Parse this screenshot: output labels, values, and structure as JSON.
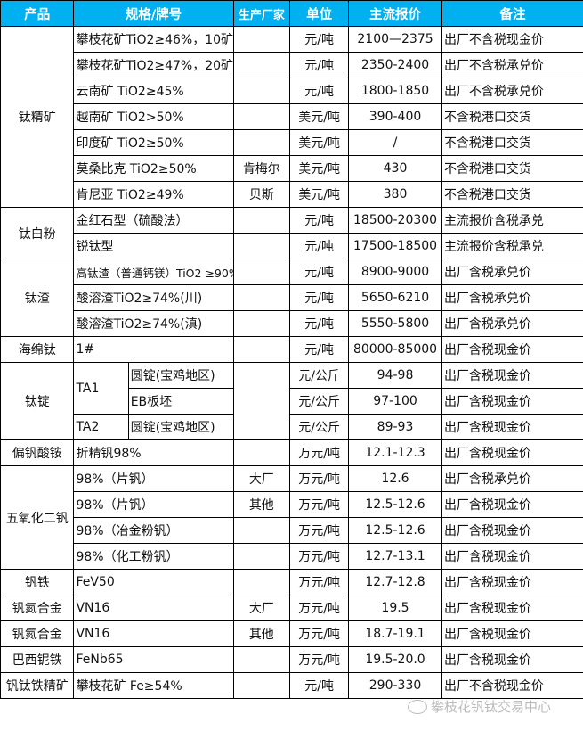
{
  "header": {
    "product": "产品",
    "spec": "规格/牌号",
    "maker": "生产厂家",
    "unit": "单位",
    "price": "主流报价",
    "note": "备注"
  },
  "colors": {
    "header_bg": "#00B0F0",
    "header_text": "#FFFFFF",
    "watermark": "#BBBBBB"
  },
  "groups": [
    {
      "product": "钛精矿",
      "rows": [
        {
          "spec": "攀枝花矿TiO2≥46%，10矿",
          "maker": "",
          "unit": "元/吨",
          "price": "2100—2375",
          "note": "出厂不含税现金价"
        },
        {
          "spec": "攀枝花矿TiO2≥47%，20矿",
          "maker": "",
          "unit": "元/吨",
          "price": "2350-2400",
          "note": "出厂不含税承兑价"
        },
        {
          "spec": "云南矿 TiO2≥45%",
          "maker": "",
          "unit": "元/吨",
          "price": "1800-1850",
          "note": "出厂不含税承兑价"
        },
        {
          "spec": "越南矿 TiO2>50%",
          "maker": "",
          "unit": "美元/吨",
          "price": "390-400",
          "note": "不含税港口交货"
        },
        {
          "spec": "印度矿 TiO2≥50%",
          "maker": "",
          "unit": "美元/吨",
          "price": "/",
          "note": "不含税港口交货"
        },
        {
          "spec": "莫桑比克 TiO2≥50%",
          "maker": "肯梅尔",
          "unit": "美元/吨",
          "price": "430",
          "note": "不含税港口交货"
        },
        {
          "spec": "肯尼亚 TiO2≥49%",
          "maker": "贝斯",
          "unit": "美元/吨",
          "price": "380",
          "note": "不含税港口交货"
        }
      ]
    },
    {
      "product": "钛白粉",
      "rows": [
        {
          "spec": "金红石型（硫酸法）",
          "maker": "",
          "unit": "元/吨",
          "price": "18500-20300",
          "note": "主流报价含税承兑"
        },
        {
          "spec": "锐钛型",
          "maker": "",
          "unit": "元/吨",
          "price": "17500-18500",
          "note": "主流报价含税承兑"
        }
      ]
    },
    {
      "product": "钛渣",
      "rows": [
        {
          "spec": "高钛渣（普通钙镁）TiO2 ≥90%",
          "maker": "",
          "unit": "元/吨",
          "price": "8900-9000",
          "note": "出厂含税承兑价",
          "small": true
        },
        {
          "spec": "酸溶渣TiO2≥74%(川)",
          "maker": "",
          "unit": "元/吨",
          "price": "5650-6210",
          "note": "出厂含税承兑价"
        },
        {
          "spec": "酸溶渣TiO2≥74%(滇)",
          "maker": "",
          "unit": "元/吨",
          "price": "5550-5800",
          "note": "出厂含税承兑价"
        }
      ]
    },
    {
      "product": "海绵钛",
      "rows": [
        {
          "spec": "1#",
          "maker": "",
          "unit": "元/吨",
          "price": "80000-85000",
          "note": "出厂含税现金价"
        }
      ]
    },
    {
      "product": "钛锭",
      "rows": [
        {
          "spec": "TA1",
          "sub": "圆锭(宝鸡地区)",
          "unit": "元/公斤",
          "price": "94-98",
          "note": "出厂含税现金价"
        },
        {
          "spec": "TA1",
          "sub": "EB板坯",
          "unit": "元/公斤",
          "price": "97-100",
          "note": "出厂含税现金价"
        },
        {
          "spec": "TA2",
          "sub": "圆锭(宝鸡地区)",
          "unit": "元/公斤",
          "price": "89-93",
          "note": "出厂含税现金价"
        }
      ]
    },
    {
      "product": "偏钒酸铵",
      "rows": [
        {
          "spec": "折精钒98%",
          "maker": "",
          "unit": "万元/吨",
          "price": "12.1-12.3",
          "note": "出厂含税现金价"
        }
      ]
    },
    {
      "product": "五氧化二钒",
      "rows": [
        {
          "spec": "98%（片钒）",
          "maker": "大厂",
          "unit": "万元/吨",
          "price": "12.6",
          "note": "出厂含税承兑价"
        },
        {
          "spec": "98%（片钒）",
          "maker": "其他",
          "unit": "万元/吨",
          "price": "12.5-12.6",
          "note": "出厂含税现金价"
        },
        {
          "spec": "98%（冶金粉钒）",
          "maker": "",
          "unit": "万元/吨",
          "price": "12.5-12.6",
          "note": "出厂含税现金价"
        },
        {
          "spec": "98%（化工粉钒）",
          "maker": "",
          "unit": "万元/吨",
          "price": "12.7-13.1",
          "note": "出厂含税现金价"
        }
      ]
    },
    {
      "product": "钒铁",
      "rows": [
        {
          "spec": "FeV50",
          "maker": "",
          "unit": "万元/吨",
          "price": "12.7-12.8",
          "note": "出厂含税现金价"
        }
      ]
    },
    {
      "product": "钒氮合金",
      "rows": [
        {
          "spec": "VN16",
          "maker": "大厂",
          "unit": "万元/吨",
          "price": "19.5",
          "note": "出厂含税现金价"
        }
      ]
    },
    {
      "product": "钒氮合金",
      "rows": [
        {
          "spec": "VN16",
          "maker": "其他",
          "unit": "万元/吨",
          "price": "18.7-19.1",
          "note": "出厂含税现金价"
        }
      ]
    },
    {
      "product": "巴西铌铁",
      "rows": [
        {
          "spec": "FeNb65",
          "maker": "",
          "unit": "万元/吨",
          "price": "19.5-20.0",
          "note": "出厂含税现金价"
        }
      ]
    },
    {
      "product": "钒钛铁精矿",
      "rows": [
        {
          "spec": "攀枝花矿 Fe≥54%",
          "maker": "",
          "unit": "元/吨",
          "price": "290-330",
          "note": "出厂不含税现金价"
        }
      ]
    }
  ],
  "watermark": {
    "icon": "wechat-icon",
    "text": "攀枝花钒钛交易中心"
  }
}
